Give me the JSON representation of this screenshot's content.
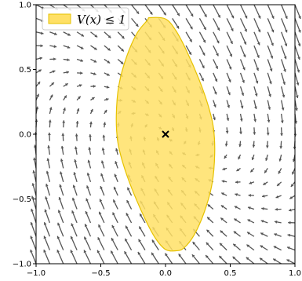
{
  "chart_data": {
    "type": "vector-field-with-region",
    "title": "",
    "xlabel": "",
    "ylabel": "",
    "xlim": [
      -1.0,
      1.0
    ],
    "ylim": [
      -1.0,
      1.0
    ],
    "xticks": [
      -1.0,
      -0.5,
      0.0,
      0.5,
      1.0
    ],
    "yticks": [
      -1.0,
      -0.5,
      0.0,
      0.5,
      1.0
    ],
    "xtick_labels": [
      "−1.0",
      "−0.5",
      "0.0",
      "0.5",
      "1.0"
    ],
    "ytick_labels": [
      "−1.0",
      "−0.5",
      "0.0",
      "0.5",
      "1.0"
    ],
    "grid": false,
    "legend": {
      "placement": "top-left",
      "entries": [
        {
          "label": "V(x) ≤ 1",
          "color": "#ffe066"
        }
      ]
    },
    "region": {
      "label": "V(x) ≤ 1",
      "fill_color": "#ffe066",
      "edge_color": "#e6c200",
      "boundary": [
        [
          -0.12,
          0.9
        ],
        [
          0.0,
          0.89
        ],
        [
          0.08,
          0.8
        ],
        [
          0.16,
          0.65
        ],
        [
          0.26,
          0.42
        ],
        [
          0.33,
          0.22
        ],
        [
          0.37,
          0.05
        ],
        [
          0.38,
          -0.15
        ],
        [
          0.36,
          -0.38
        ],
        [
          0.3,
          -0.6
        ],
        [
          0.22,
          -0.78
        ],
        [
          0.14,
          -0.88
        ],
        [
          0.08,
          -0.9
        ],
        [
          0.0,
          -0.89
        ],
        [
          -0.08,
          -0.8
        ],
        [
          -0.16,
          -0.65
        ],
        [
          -0.26,
          -0.42
        ],
        [
          -0.33,
          -0.22
        ],
        [
          -0.37,
          -0.05
        ],
        [
          -0.38,
          0.15
        ],
        [
          -0.36,
          0.38
        ],
        [
          -0.3,
          0.6
        ],
        [
          -0.22,
          0.78
        ],
        [
          -0.14,
          0.88
        ]
      ]
    },
    "equilibrium": {
      "x": 0.0,
      "y": 0.0,
      "marker": "x",
      "color": "#000000"
    },
    "vector_field": {
      "color": "#555555",
      "grid_n": 20,
      "range": [
        -1.0,
        1.0
      ],
      "field": "x' = y, y' = -x - 1.5*y"
    }
  }
}
